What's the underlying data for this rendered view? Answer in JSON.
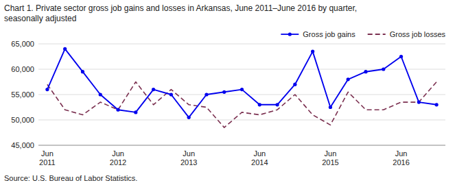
{
  "chart_data": {
    "type": "line",
    "title": "Chart 1. Private sector gross job gains and losses in Arkansas, June 2011–June 2016 by quarter,",
    "subtitle": "seasonally adjusted",
    "source": "Source: U.S. Bureau of Labor Statistics.",
    "categories": [
      "Jun\n2011",
      null,
      null,
      null,
      "Jun\n2012",
      null,
      null,
      null,
      "Jun\n2013",
      null,
      null,
      null,
      "Jun\n2014",
      null,
      null,
      null,
      "Jun\n2015",
      null,
      null,
      null,
      "Jun\n2016",
      null,
      null
    ],
    "series": [
      {
        "name": "Gross job gains",
        "color": "#0000ee",
        "line_style": "solid",
        "marker": "circle",
        "values": [
          56000,
          64000,
          59500,
          55000,
          52000,
          51500,
          56000,
          55000,
          50500,
          55000,
          55500,
          56000,
          53000,
          53000,
          57000,
          63500,
          52500,
          58000,
          59500,
          60000,
          62500,
          53500,
          53000
        ]
      },
      {
        "name": "Gross job losses",
        "color": "#7b3050",
        "line_style": "dashed",
        "marker": "none",
        "values": [
          57000,
          52000,
          51000,
          53500,
          52000,
          57500,
          53000,
          56000,
          53000,
          52500,
          48500,
          51500,
          51000,
          52000,
          55000,
          51000,
          49000,
          55500,
          52000,
          52000,
          53500,
          53500,
          57500
        ]
      }
    ],
    "ylim": [
      45000,
      65000
    ],
    "yticks": [
      {
        "value": 45000,
        "label": "45,000"
      },
      {
        "value": 50000,
        "label": "50,000"
      },
      {
        "value": 55000,
        "label": "55,000"
      },
      {
        "value": 60000,
        "label": "60,000"
      },
      {
        "value": 65000,
        "label": "65,000"
      }
    ],
    "grid": true,
    "legend": "upper right"
  }
}
